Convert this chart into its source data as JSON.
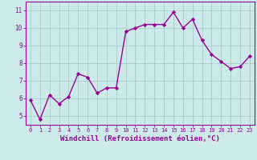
{
  "x": [
    0,
    1,
    2,
    3,
    4,
    5,
    6,
    7,
    8,
    9,
    10,
    11,
    12,
    13,
    14,
    15,
    16,
    17,
    18,
    19,
    20,
    21,
    22,
    23
  ],
  "y": [
    5.9,
    4.8,
    6.2,
    5.7,
    6.1,
    7.4,
    7.2,
    6.3,
    6.6,
    6.6,
    9.8,
    10.0,
    10.2,
    10.2,
    10.2,
    10.9,
    10.0,
    10.5,
    9.3,
    8.5,
    8.1,
    7.7,
    7.8,
    8.4
  ],
  "line_color": "#990099",
  "marker": "D",
  "markersize": 2.2,
  "linewidth": 1.0,
  "bg_color": "#cceaea",
  "grid_color": "#aacccc",
  "xlabel": "Windchill (Refroidissement éolien,°C)",
  "xlabel_color": "#990099",
  "tick_color": "#990099",
  "spine_color": "#990099",
  "xlim": [
    -0.5,
    23.5
  ],
  "ylim": [
    4.5,
    11.5
  ],
  "yticks": [
    5,
    6,
    7,
    8,
    9,
    10,
    11
  ],
  "xticks": [
    0,
    1,
    2,
    3,
    4,
    5,
    6,
    7,
    8,
    9,
    10,
    11,
    12,
    13,
    14,
    15,
    16,
    17,
    18,
    19,
    20,
    21,
    22,
    23
  ],
  "xtick_fontsize": 5.0,
  "ytick_fontsize": 5.5,
  "xlabel_fontsize": 6.5
}
